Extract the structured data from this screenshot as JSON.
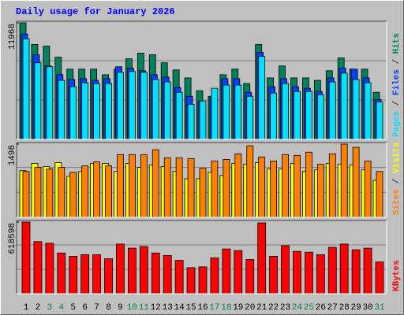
{
  "chart_data": {
    "type": "bar",
    "title": "Daily usage for January 2026",
    "categories": [
      "1",
      "2",
      "3",
      "4",
      "5",
      "6",
      "7",
      "8",
      "9",
      "10",
      "11",
      "12",
      "13",
      "14",
      "15",
      "16",
      "17",
      "18",
      "19",
      "20",
      "21",
      "22",
      "23",
      "24",
      "25",
      "26",
      "27",
      "28",
      "29",
      "30",
      "31"
    ],
    "category_colors": [
      "#000000",
      "#000000",
      "#008040",
      "#008040",
      "#000000",
      "#000000",
      "#000000",
      "#000000",
      "#000000",
      "#008040",
      "#008040",
      "#000000",
      "#000000",
      "#000000",
      "#000000",
      "#000000",
      "#008040",
      "#008040",
      "#000000",
      "#000000",
      "#000000",
      "#000000",
      "#000000",
      "#008040",
      "#008040",
      "#000000",
      "#000000",
      "#000000",
      "#000000",
      "#000000",
      "#008040"
    ],
    "separator": " / ",
    "panels": [
      {
        "ylim": [
          0,
          11968
        ],
        "yticks": [
          11968
        ],
        "series": [
          {
            "name": "Hits",
            "color": "#00805c",
            "values": [
              11968,
              9755,
              9590,
              8443,
              7213,
              7213,
              7213,
              6640,
              7213,
              8279,
              8853,
              8689,
              7869,
              7132,
              6312,
              5000,
              4426,
              6640,
              7213,
              5738,
              9755,
              6312,
              7541,
              6312,
              6312,
              6066,
              7049,
              8361,
              7213,
              7213,
              4836
            ]
          },
          {
            "name": "Files",
            "color": "#0040ff",
            "values": [
              10820,
              8689,
              7541,
              6640,
              6148,
              6230,
              6066,
              6230,
              7459,
              7295,
              7049,
              6640,
              6394,
              5328,
              4426,
              3935,
              4262,
              6230,
              6230,
              4836,
              8935,
              5410,
              6230,
              5410,
              5246,
              4918,
              6312,
              7295,
              7213,
              6312,
              4099
            ]
          },
          {
            "name": "Pages",
            "color": "#00e0ff",
            "values": [
              10328,
              7869,
              7459,
              6066,
              5410,
              5820,
              5738,
              5738,
              6886,
              6968,
              6886,
              6148,
              5902,
              4836,
              3607,
              3935,
              5246,
              5574,
              5574,
              4426,
              8525,
              4754,
              5738,
              4918,
              4918,
              4590,
              5902,
              6804,
              6148,
              5820,
              3853
            ]
          }
        ]
      },
      {
        "ylim": [
          0,
          1498
        ],
        "yticks": [
          1498
        ],
        "series": [
          {
            "name": "Visits",
            "color": "#ffff00",
            "values": [
              955,
              1103,
              1037,
              1119,
              839,
              938,
              1103,
              1103,
              938,
              1103,
              1021,
              1070,
              1037,
              938,
              790,
              790,
              922,
              856,
              1103,
              1086,
              1119,
              988,
              988,
              1103,
              938,
              971,
              1103,
              1086,
              1070,
              971,
              757
            ]
          },
          {
            "name": "Sites",
            "color": "#ff8000",
            "values": [
              938,
              1021,
              988,
              1021,
              922,
              1053,
              1136,
              1053,
              1284,
              1284,
              1284,
              1383,
              1218,
              1218,
              1202,
              1004,
              1152,
              1185,
              1300,
              1465,
              1235,
              1152,
              1284,
              1267,
              1333,
              1086,
              1300,
              1498,
              1432,
              1152,
              938
            ]
          }
        ]
      },
      {
        "ylim": [
          0,
          618598
        ],
        "yticks": [
          618598
        ],
        "series": [
          {
            "name": "KBytes",
            "color": "#ff0000",
            "values": [
              618598,
              449920,
              435860,
              351500,
              323380,
              337440,
              337440,
              302290,
              428830,
              393680,
              407740,
              351500,
              330410,
              288230,
              224960,
              231990,
              309320,
              386650,
              372590,
              295260,
              611610,
              323380,
              414770,
              365560,
              358530,
              337440,
              400710,
              428830,
              379620,
              393680,
              274170
            ]
          }
        ]
      }
    ]
  }
}
